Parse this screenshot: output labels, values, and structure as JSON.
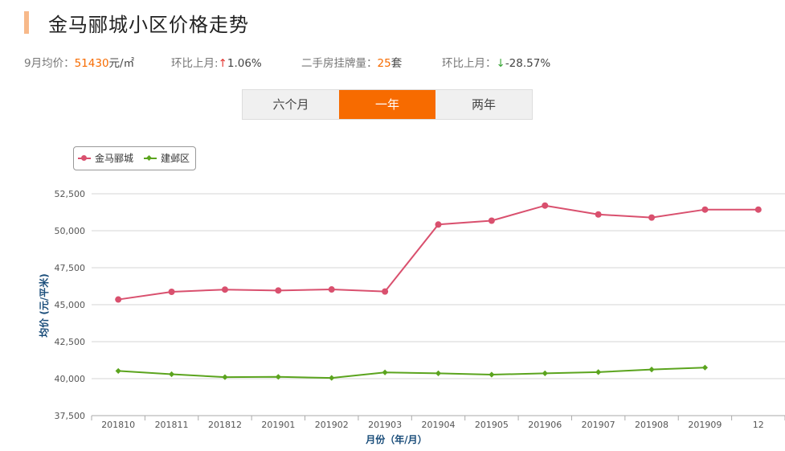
{
  "page": {
    "title": "金马郦城小区价格走势"
  },
  "stats": {
    "avg_label": "9月均价：",
    "avg_value": "51430",
    "avg_unit": "元/㎡",
    "mom1_label": "环比上月:",
    "mom1_arrow": "↑",
    "mom1_value": "1.06%",
    "listing_label": "二手房挂牌量：",
    "listing_value": "25",
    "listing_unit": "套",
    "mom2_label": "环比上月：",
    "mom2_arrow": "↓",
    "mom2_value": "-28.57%"
  },
  "tabs": [
    {
      "label": "六个月",
      "active": false
    },
    {
      "label": "一年",
      "active": true
    },
    {
      "label": "两年",
      "active": false
    }
  ],
  "chart_data": {
    "type": "line",
    "categories": [
      "201810",
      "201811",
      "201812",
      "201901",
      "201902",
      "201903",
      "201904",
      "201905",
      "201906",
      "201907",
      "201908",
      "201909",
      "12"
    ],
    "series": [
      {
        "name": "金马郦城",
        "color": "#d9506e",
        "marker": "circle",
        "values": [
          45350,
          45870,
          46020,
          45960,
          46030,
          45890,
          50420,
          50680,
          51700,
          51100,
          50890,
          51430,
          51430
        ]
      },
      {
        "name": "建邺区",
        "color": "#5ba41e",
        "marker": "diamond",
        "values": [
          40520,
          40300,
          40100,
          40120,
          40050,
          40420,
          40360,
          40270,
          40360,
          40440,
          40620,
          40750,
          null
        ]
      }
    ],
    "ylim": [
      37500,
      52500
    ],
    "yticks": [
      37500,
      40000,
      42500,
      45000,
      47500,
      50000,
      52500
    ],
    "ytick_labels": [
      "37,500",
      "40,000",
      "42,500",
      "45,000",
      "47,500",
      "50,000",
      "52,500"
    ],
    "xlabel": "月份（年/月）",
    "ylabel": "均价 (元/平米)",
    "grid": true,
    "legend": "top-left"
  }
}
